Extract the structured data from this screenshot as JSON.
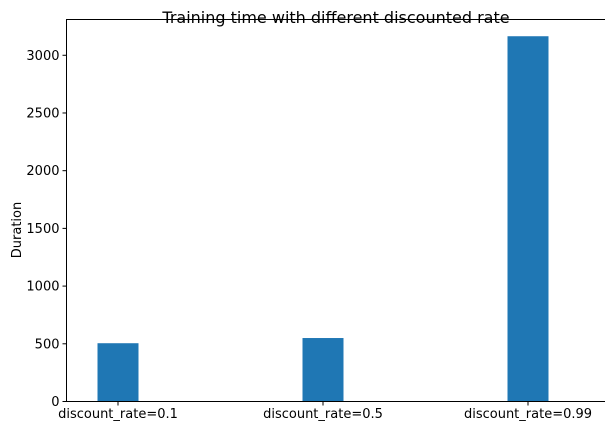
{
  "chart_data": {
    "type": "bar",
    "title": "Training time with different discounted rate",
    "xlabel": "",
    "ylabel": "Duration",
    "categories": [
      "discount_rate=0.1",
      "discount_rate=0.5",
      "discount_rate=0.99"
    ],
    "values": [
      505,
      550,
      3165
    ],
    "ylim": [
      0,
      3310
    ],
    "yticks": [
      0,
      500,
      1000,
      1500,
      2000,
      2500,
      3000
    ],
    "grid": false,
    "bar_color": "#1f77b4"
  }
}
